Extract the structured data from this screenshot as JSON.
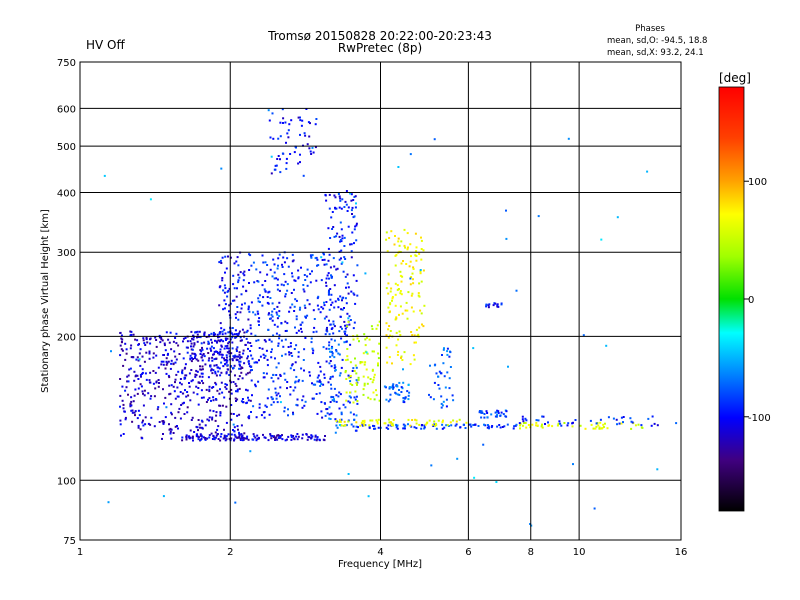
{
  "status_label": "HV Off",
  "title_line1": "Tromsø 20150828 20:22:00-20:23:43",
  "title_line2": "RwPretec (8p)",
  "stats": {
    "heading": "Phases",
    "line1": "mean, sd,O: -94.5, 18.8",
    "line2": "mean, sd,X: 93.2, 24.1"
  },
  "colorbar": {
    "label": "[deg]",
    "ticks": [
      "100",
      "0",
      "-100"
    ],
    "tick_values": [
      100,
      0,
      -100
    ],
    "range": [
      -180,
      180
    ]
  },
  "colors": {
    "status": "#cc0000",
    "grid": "#000000"
  },
  "chart_data": {
    "type": "scatter",
    "xlabel": "Frequency [MHz]",
    "ylabel": "Stationary phase Virtual Height [km]",
    "xscale": "log",
    "yscale": "log",
    "xlim": [
      1,
      16
    ],
    "ylim": [
      75,
      750
    ],
    "xticks": [
      1,
      2,
      4,
      6,
      8,
      10,
      16
    ],
    "xtick_labels": [
      "1",
      "2",
      "4",
      "6",
      "8",
      "10",
      "16"
    ],
    "yticks": [
      75,
      100,
      200,
      300,
      400,
      500,
      600,
      750
    ],
    "ytick_labels": [
      "75",
      "100",
      "200",
      "300",
      "400",
      "500",
      "600",
      "750"
    ],
    "grid": true,
    "color_encodes": "phase (deg)",
    "clusters": [
      {
        "x": [
          1.2,
          2.2
        ],
        "y": [
          122,
          205
        ],
        "phase": -125,
        "n": 520
      },
      {
        "x": [
          1.6,
          2.1
        ],
        "y": [
          165,
          205
        ],
        "phase": -118,
        "n": 140
      },
      {
        "x": [
          1.9,
          2.2
        ],
        "y": [
          170,
          300
        ],
        "phase": -110,
        "n": 120
      },
      {
        "x": [
          2.2,
          3.2
        ],
        "y": [
          135,
          300
        ],
        "phase": -100,
        "n": 380
      },
      {
        "x": [
          1.6,
          3.1
        ],
        "y": [
          121,
          125
        ],
        "phase": -120,
        "n": 150
      },
      {
        "x": [
          3.1,
          3.6
        ],
        "y": [
          200,
          405
        ],
        "phase": -105,
        "n": 160
      },
      {
        "x": [
          3.15,
          3.6
        ],
        "y": [
          125,
          200
        ],
        "phase": -88,
        "n": 90
      },
      {
        "x": [
          3.4,
          4.0
        ],
        "y": [
          145,
          215
        ],
        "phase": 60,
        "n": 80
      },
      {
        "x": [
          4.1,
          4.9
        ],
        "y": [
          175,
          340
        ],
        "phase": 85,
        "n": 140
      },
      {
        "x": [
          4.1,
          4.6
        ],
        "y": [
          145,
          160
        ],
        "phase": -85,
        "n": 40
      },
      {
        "x": [
          5.0,
          5.6
        ],
        "y": [
          140,
          190
        ],
        "phase": -85,
        "n": 40
      },
      {
        "x": [
          3.6,
          7.5
        ],
        "y": [
          128,
          131
        ],
        "phase": -95,
        "n": 80
      },
      {
        "x": [
          3.2,
          6.0
        ],
        "y": [
          130,
          134
        ],
        "phase": 80,
        "n": 60
      },
      {
        "x": [
          2.4,
          3.0
        ],
        "y": [
          430,
          600
        ],
        "phase": -110,
        "n": 60
      },
      {
        "x": [
          6.3,
          7.2
        ],
        "y": [
          135,
          140
        ],
        "phase": -90,
        "n": 30
      },
      {
        "x": [
          6.5,
          7.0
        ],
        "y": [
          230,
          235
        ],
        "phase": -110,
        "n": 15
      },
      {
        "x": [
          7.5,
          13.5
        ],
        "y": [
          128,
          132
        ],
        "phase": 70,
        "n": 50
      },
      {
        "x": [
          7.5,
          14.5
        ],
        "y": [
          130,
          136
        ],
        "phase": -100,
        "n": 40
      },
      {
        "x": [
          1.0,
          16.0
        ],
        "y": [
          80,
          650
        ],
        "phase": -60,
        "n": 60
      }
    ]
  }
}
